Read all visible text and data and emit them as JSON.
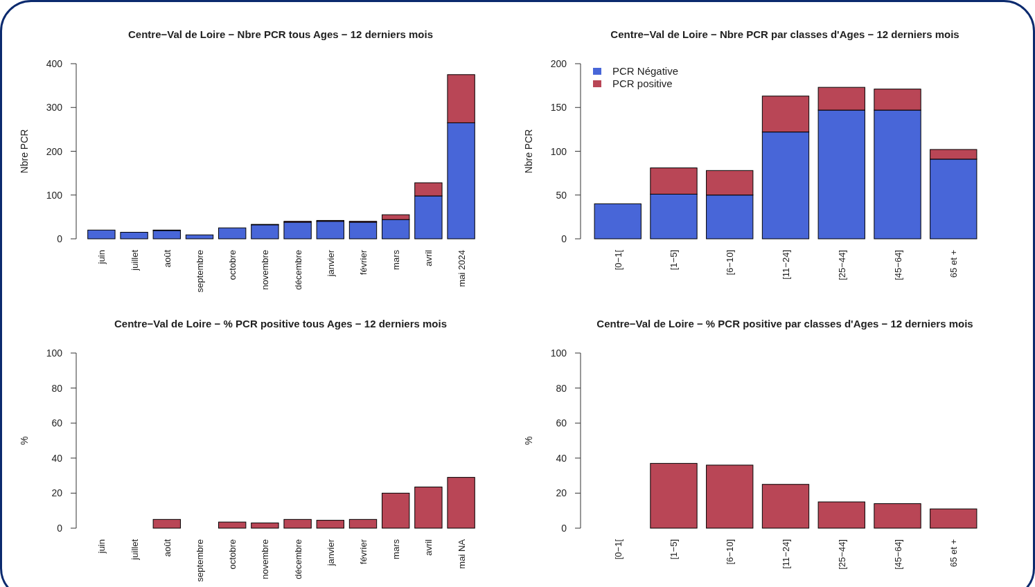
{
  "chart_data": [
    {
      "type": "bar",
      "title": "Centre−Val de Loire − Nbre PCR tous Ages − 12 derniers mois",
      "ylabel": "Nbre PCR",
      "categories": [
        "juin",
        "juillet",
        "août",
        "septembre",
        "octobre",
        "novembre",
        "décembre",
        "janvier",
        "février",
        "mars",
        "avril",
        "mai 2024"
      ],
      "stacked": true,
      "ylim": [
        0,
        400
      ],
      "yticks": [
        0,
        100,
        200,
        300,
        400
      ],
      "series": [
        {
          "color": "#4866d8",
          "values": [
            20,
            15,
            19,
            9,
            25,
            32,
            38,
            40,
            38,
            44,
            98,
            265
          ]
        },
        {
          "color": "#b94656",
          "values": [
            0,
            0,
            1,
            0,
            null,
            1,
            2,
            2,
            2,
            11,
            30,
            110
          ]
        }
      ]
    },
    {
      "type": "bar",
      "title": "Centre−Val de Loire − Nbre PCR par classes d'Ages − 12 derniers mois",
      "ylabel": "Nbre PCR",
      "categories": [
        "[0−1[",
        "[1−5]",
        "[6−10]",
        "[11−24]",
        "[25−44]",
        "[45−64]",
        "65 et +"
      ],
      "stacked": true,
      "legend": "top left",
      "ylim": [
        0,
        200
      ],
      "yticks": [
        0,
        50,
        100,
        150,
        200
      ],
      "series": [
        {
          "name": "PCR Négative",
          "color": "#4866d8",
          "values": [
            40,
            51,
            50,
            122,
            147,
            147,
            91
          ]
        },
        {
          "name": "PCR positive",
          "color": "#b94656",
          "values": [
            0,
            30,
            28,
            41,
            26,
            24,
            11
          ]
        }
      ]
    },
    {
      "type": "bar",
      "title": "Centre−Val de Loire − % PCR positive tous Ages − 12 derniers mois",
      "ylabel": "%",
      "categories": [
        "juin",
        "juillet",
        "août",
        "septembre",
        "octobre",
        "novembre",
        "décembre",
        "janvier",
        "février",
        "mars",
        "avril",
        "mai NA"
      ],
      "ylim": [
        0,
        100
      ],
      "yticks": [
        0,
        20,
        40,
        60,
        80,
        100
      ],
      "series": [
        {
          "color": "#b94656",
          "values": [
            0,
            0,
            5,
            0,
            3.5,
            3,
            5,
            4.5,
            5,
            20,
            23.5,
            29
          ]
        }
      ]
    },
    {
      "type": "bar",
      "title": "Centre−Val de Loire − % PCR positive par classes d'Ages − 12 derniers mois",
      "ylabel": "%",
      "categories": [
        "[0−1[",
        "[1−5]",
        "[6−10]",
        "[11−24]",
        "[25−44]",
        "[45−64]",
        "65 et +"
      ],
      "ylim": [
        0,
        100
      ],
      "yticks": [
        0,
        20,
        40,
        60,
        80,
        100
      ],
      "series": [
        {
          "color": "#b94656",
          "values": [
            0,
            37,
            36,
            25,
            15,
            14,
            11
          ]
        }
      ]
    }
  ]
}
